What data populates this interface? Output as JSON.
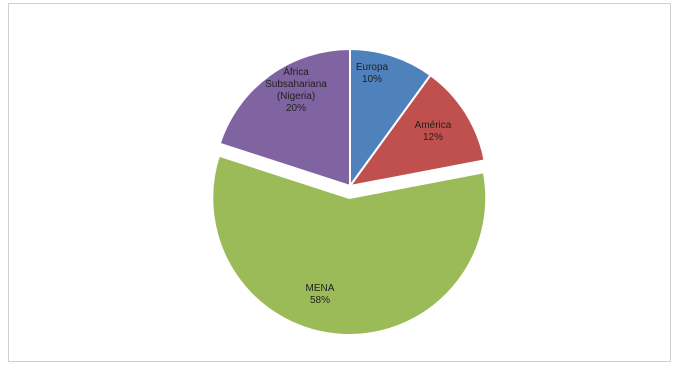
{
  "chart_data": {
    "type": "pie",
    "title": "",
    "categories": [
      "Europa",
      "América",
      "MENA",
      "África Subsahariana (Nigeria)"
    ],
    "values": [
      10,
      12,
      58,
      20
    ],
    "value_labels": [
      "10%",
      "12%",
      "58%",
      "20%"
    ],
    "label_lines": [
      [
        "Europa",
        "10%"
      ],
      [
        "América",
        "12%"
      ],
      [
        "MENA",
        "58%"
      ],
      [
        "África",
        "Subsahariana",
        "(Nigeria)",
        "20%"
      ]
    ],
    "colors": [
      "#4f81bd",
      "#c0504d",
      "#9bbb59",
      "#8064a2"
    ],
    "exploded": [
      false,
      false,
      true,
      false
    ],
    "legend": "none",
    "data_labels": "inside"
  }
}
